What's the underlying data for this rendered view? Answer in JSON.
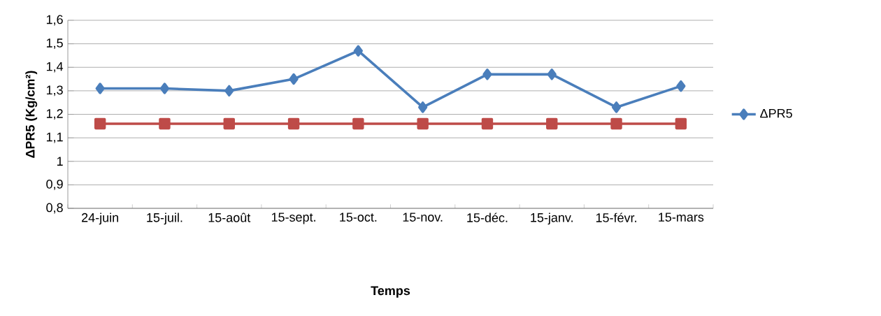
{
  "chart_data": {
    "type": "line",
    "xlabel": "Temps",
    "ylabel": "ΔPR5 (Kg/cm²)",
    "categories": [
      "24-juin",
      "15-juil.",
      "15-août",
      "15-sept.",
      "15-oct.",
      "15-nov.",
      "15-déc.",
      "15-janv.",
      "15-févr.",
      "15-mars"
    ],
    "series": [
      {
        "name": "ΔPR5",
        "color": "#4a7ebb",
        "marker": "diamond",
        "values": [
          1.31,
          1.31,
          1.3,
          1.35,
          1.47,
          1.23,
          1.37,
          1.37,
          1.23,
          1.32
        ]
      },
      {
        "color": "#be4b48",
        "marker": "square",
        "values": [
          1.16,
          1.16,
          1.16,
          1.16,
          1.16,
          1.16,
          1.16,
          1.16,
          1.16,
          1.16
        ]
      }
    ],
    "ylim": [
      0.8,
      1.6
    ],
    "yticks": [
      {
        "value": 0.8,
        "label": "0,8"
      },
      {
        "value": 0.9,
        "label": "0,9"
      },
      1,
      {
        "value": 1.1,
        "label": "1,1"
      },
      {
        "value": 1.2,
        "label": "1,2"
      },
      {
        "value": 1.3,
        "label": "1,3"
      },
      {
        "value": 1.4,
        "label": "1,4"
      },
      {
        "value": 1.5,
        "label": "1,5"
      },
      {
        "value": 1.6,
        "label": "1,6"
      }
    ],
    "grid": "y",
    "legend": "right",
    "line_style": "solid"
  }
}
